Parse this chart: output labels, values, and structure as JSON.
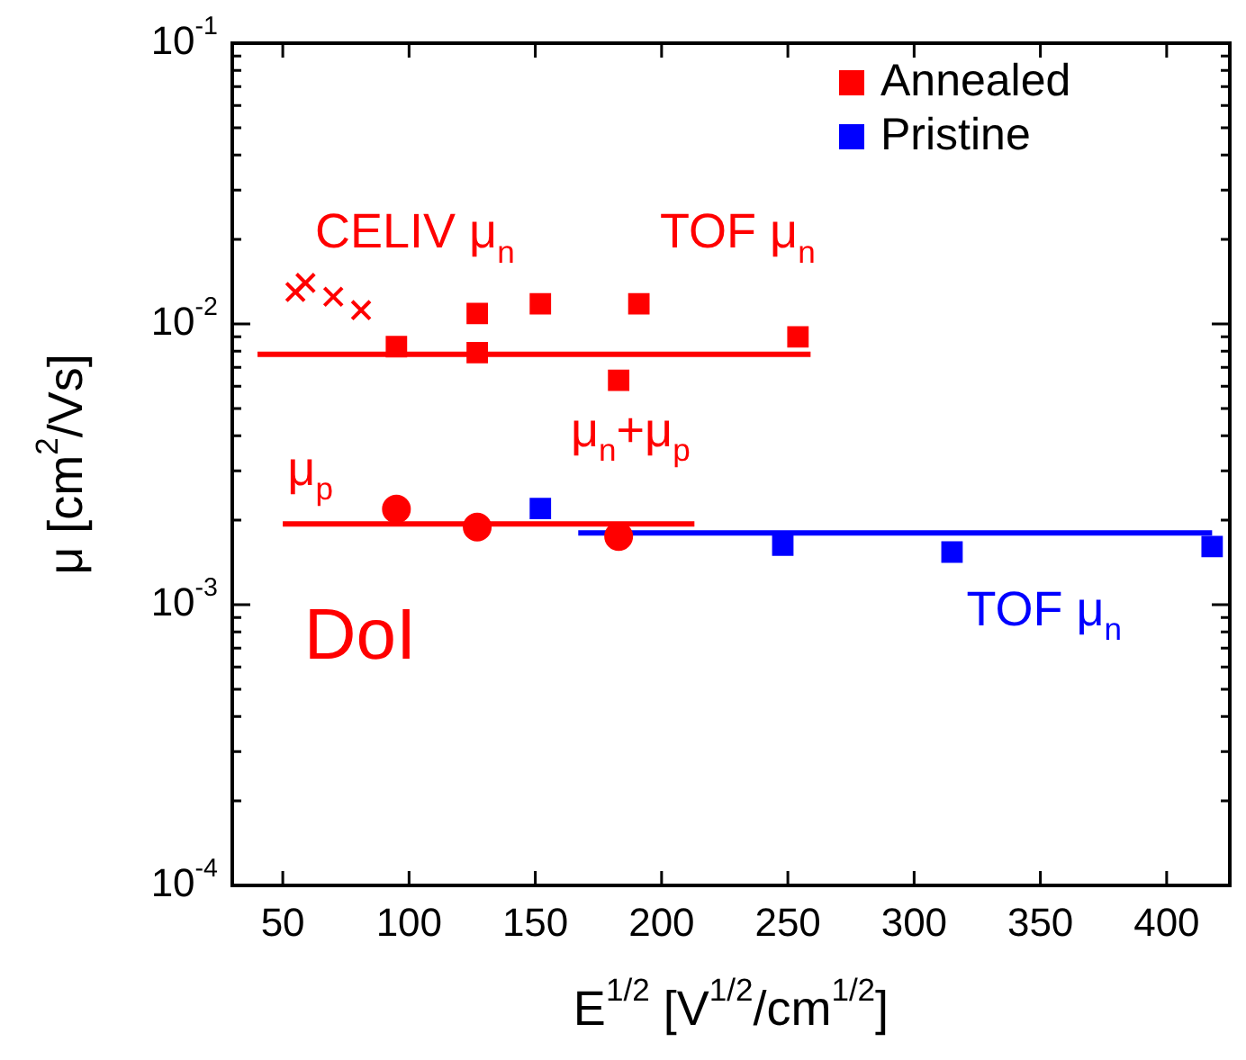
{
  "chart_data": {
    "type": "scatter",
    "xlabel": "E$^{1/2}$ [V$^{1/2}$/cm$^{1/2}$]",
    "ylabel": "μ [cm$^{2}$/Vs]",
    "xlim": [
      30,
      425
    ],
    "xticks": [
      50,
      100,
      150,
      200,
      250,
      300,
      350,
      400
    ],
    "ylim": [
      0.0001,
      0.1
    ],
    "log": "y",
    "yticks": [
      {
        "value": 0.0001,
        "label": "10$^{-4}$"
      },
      {
        "value": 0.0002,
        "label": null
      },
      {
        "value": 0.0003,
        "label": null
      },
      {
        "value": 0.0004,
        "label": null
      },
      {
        "value": 0.0005,
        "label": null
      },
      {
        "value": 0.0006,
        "label": null
      },
      {
        "value": 0.0007,
        "label": null
      },
      {
        "value": 0.0008,
        "label": null
      },
      {
        "value": 0.0009,
        "label": null
      },
      {
        "value": 0.001,
        "label": "10$^{-3}$"
      },
      {
        "value": 0.002,
        "label": null
      },
      {
        "value": 0.003,
        "label": null
      },
      {
        "value": 0.004,
        "label": null
      },
      {
        "value": 0.005,
        "label": null
      },
      {
        "value": 0.006,
        "label": null
      },
      {
        "value": 0.007,
        "label": null
      },
      {
        "value": 0.008,
        "label": null
      },
      {
        "value": 0.009,
        "label": null
      },
      {
        "value": 0.01,
        "label": "10$^{-2}$"
      },
      {
        "value": 0.02,
        "label": null
      },
      {
        "value": 0.03,
        "label": null
      },
      {
        "value": 0.04,
        "label": null
      },
      {
        "value": 0.05,
        "label": null
      },
      {
        "value": 0.06,
        "label": null
      },
      {
        "value": 0.07,
        "label": null
      },
      {
        "value": 0.08,
        "label": null
      },
      {
        "value": 0.09,
        "label": null
      },
      {
        "value": 0.1,
        "label": "10$^{-1}$"
      }
    ],
    "grid": false,
    "legend": "top right",
    "series": [
      {
        "name": "Annealed",
        "type": "scatter",
        "marker": "square",
        "color": "#ff0000",
        "x": [
          95,
          127,
          183
        ],
        "values": [
          0.0083,
          0.0079,
          0.0063
        ]
      },
      {
        "name": "Pristine",
        "type": "scatter",
        "marker": "square",
        "color": "#0000ff",
        "x": [
          152,
          248,
          315,
          418
        ],
        "values": [
          0.0022,
          0.00163,
          0.00154,
          0.00161
        ]
      },
      {
        "type": "scatter",
        "marker": "cross",
        "color": "#ff0000",
        "x": [
          55,
          59,
          70,
          81
        ],
        "values": [
          0.013,
          0.014,
          0.0125,
          0.0112
        ]
      },
      {
        "type": "scatter",
        "marker": "square",
        "color": "#ff0000",
        "x": [
          127,
          152,
          191,
          254
        ],
        "values": [
          0.0109,
          0.0118,
          0.0118,
          0.009
        ]
      },
      {
        "type": "scatter",
        "marker": "circle",
        "color": "#ff0000",
        "x": [
          95,
          127,
          183
        ],
        "values": [
          0.00219,
          0.00189,
          0.00175
        ]
      },
      {
        "type": "line",
        "marker": "none",
        "color": "#ff0000",
        "x": [
          40,
          259
        ],
        "values": [
          0.0078,
          0.0078
        ]
      },
      {
        "type": "line",
        "marker": "none",
        "color": "#ff0000",
        "x": [
          50,
          213
        ],
        "values": [
          0.00194,
          0.00194
        ]
      },
      {
        "type": "line",
        "marker": "none",
        "color": "#0000ff",
        "x": [
          167,
          418
        ],
        "values": [
          0.0018,
          0.0018
        ]
      }
    ],
    "annotations": [
      "CELIV μ$_{n}$",
      "TOF μ$_{n}$",
      "μ$_{p}$",
      "μ$_{n}$+μ$_{p}$",
      "DoI",
      "TOF μ$_{n}$"
    ]
  }
}
